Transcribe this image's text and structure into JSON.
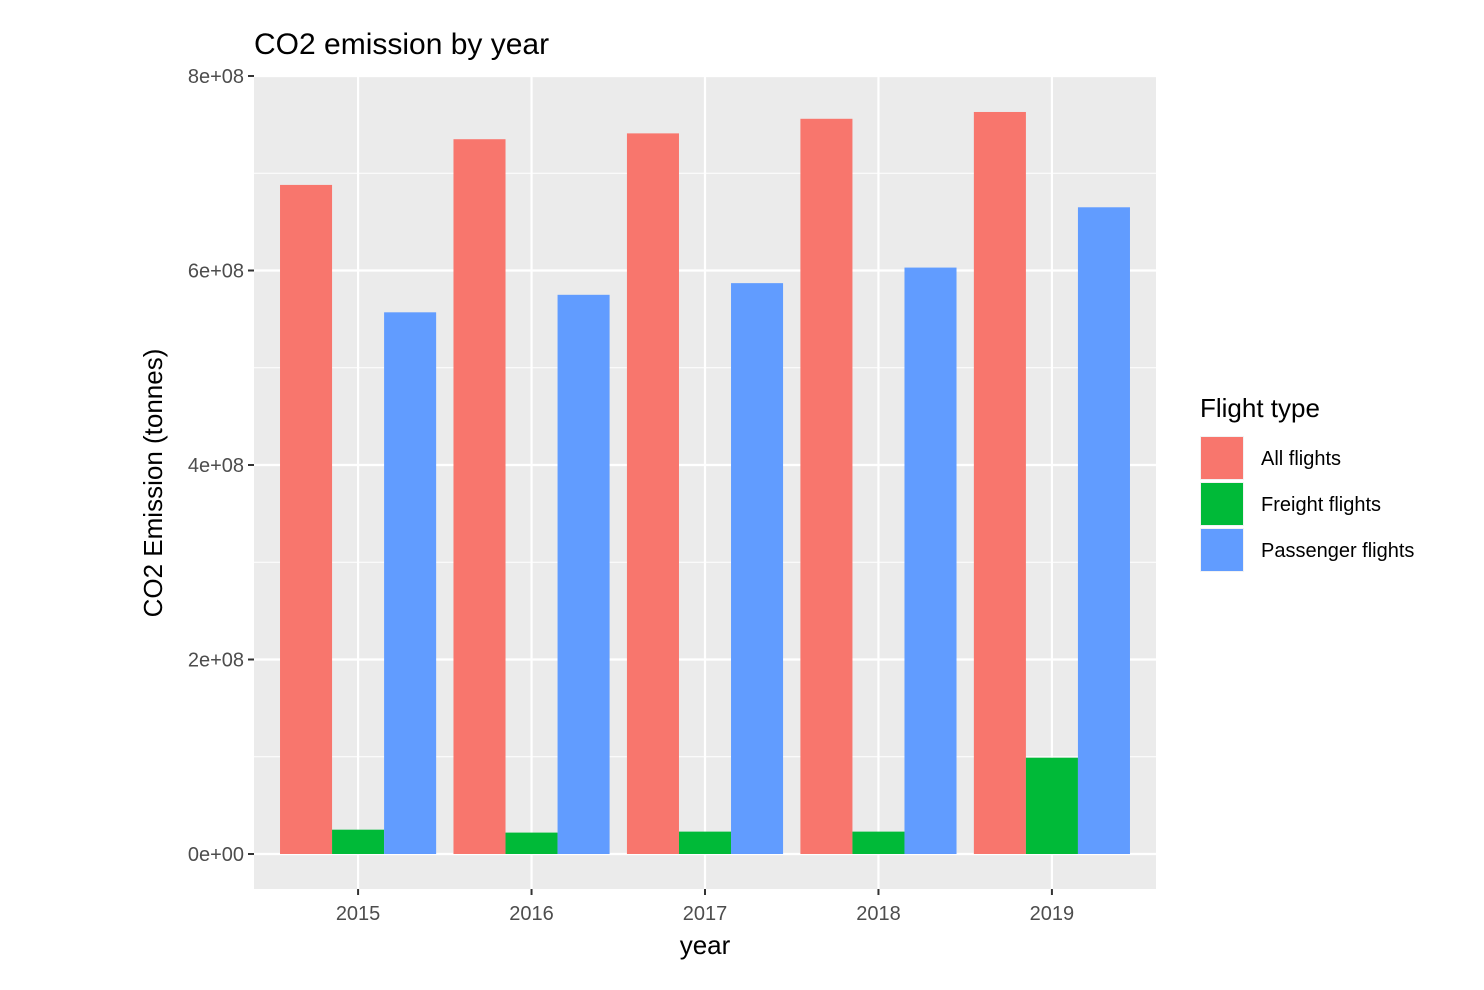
{
  "chart_data": {
    "type": "bar",
    "title": "CO2 emission by year",
    "xlabel": "year",
    "ylabel": "CO2 Emission (tonnes)",
    "categories": [
      "2015",
      "2016",
      "2017",
      "2018",
      "2019"
    ],
    "ylim": [
      -36000000,
      800000000
    ],
    "yticks": [
      0,
      200000000,
      400000000,
      600000000,
      800000000
    ],
    "ytick_labels": [
      "0e+00",
      "2e+08",
      "4e+08",
      "6e+08",
      "8e+08"
    ],
    "grid": true,
    "legend": {
      "title": "Flight type",
      "position": "right"
    },
    "series": [
      {
        "name": "All flights",
        "color": "#F8766D",
        "values": [
          688000000,
          735000000,
          741000000,
          756000000,
          763000000
        ]
      },
      {
        "name": "Freight flights",
        "color": "#00BA38",
        "values": [
          25000000,
          22000000,
          23000000,
          23000000,
          99000000
        ]
      },
      {
        "name": "Passenger flights",
        "color": "#619CFF",
        "values": [
          557000000,
          575000000,
          587000000,
          603000000,
          665000000
        ]
      }
    ]
  }
}
